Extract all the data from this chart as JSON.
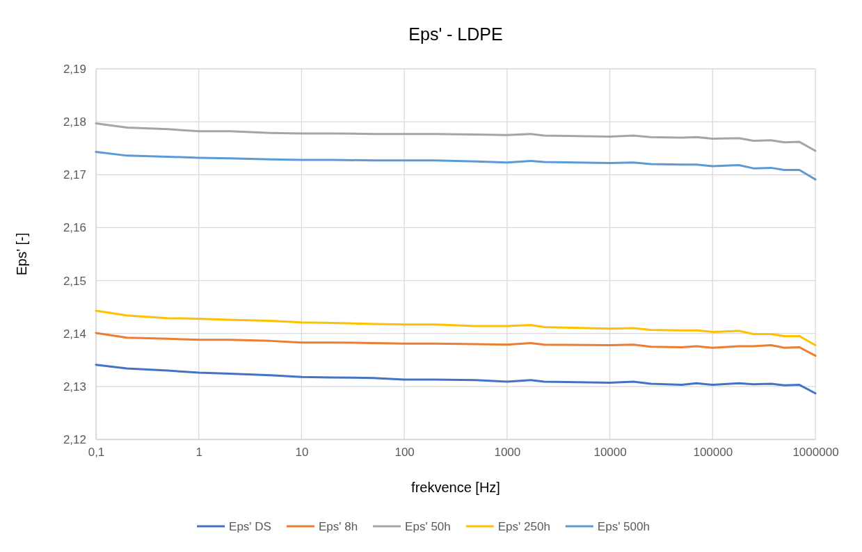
{
  "chart_data": {
    "type": "line",
    "title": "Eps' - LDPE",
    "xlabel": "frekvence [Hz]",
    "ylabel": "Eps' [-]",
    "x": [
      0.1,
      0.2,
      0.5,
      1,
      2,
      5,
      10,
      20,
      50,
      100,
      200,
      500,
      1000,
      1700,
      2300,
      10000,
      17000,
      25000,
      50000,
      70000,
      100000,
      180000,
      250000,
      370000,
      500000,
      700000,
      1000000
    ],
    "log": "x",
    "grid": true,
    "legend": "bottom",
    "marker": "none",
    "line_style": "solid",
    "xlim": [
      0.1,
      1000000
    ],
    "xticks": [
      {
        "value": 0.1,
        "label": "0,1"
      },
      1,
      10,
      100,
      1000,
      10000,
      100000,
      1000000
    ],
    "ylim": [
      2.12,
      2.19
    ],
    "yticks": [
      {
        "value": 2.12,
        "label": "2,12"
      },
      {
        "value": 2.13,
        "label": "2,13"
      },
      {
        "value": 2.14,
        "label": "2,14"
      },
      {
        "value": 2.15,
        "label": "2,15"
      },
      {
        "value": 2.16,
        "label": "2,16"
      },
      {
        "value": 2.17,
        "label": "2,17"
      },
      {
        "value": 2.18,
        "label": "2,18"
      },
      {
        "value": 2.19,
        "label": "2,19"
      }
    ],
    "series": [
      {
        "name": "Eps' DS",
        "color": "#4472c4",
        "values": [
          2.1341,
          2.1334,
          2.133,
          2.1326,
          2.1324,
          2.1321,
          2.1318,
          2.1317,
          2.1316,
          2.1313,
          2.1313,
          2.1312,
          2.1309,
          2.1312,
          2.1309,
          2.1307,
          2.1309,
          2.1305,
          2.1303,
          2.1306,
          2.1303,
          2.1306,
          2.1304,
          2.1305,
          2.1302,
          2.1303,
          2.1287
        ]
      },
      {
        "name": "Eps' 8h",
        "color": "#ed7d31",
        "values": [
          2.1401,
          2.1392,
          2.139,
          2.1388,
          2.1388,
          2.1386,
          2.1383,
          2.1383,
          2.1382,
          2.1381,
          2.1381,
          2.138,
          2.1379,
          2.1382,
          2.1379,
          2.1378,
          2.1379,
          2.1375,
          2.1374,
          2.1376,
          2.1373,
          2.1376,
          2.1376,
          2.1378,
          2.1373,
          2.1374,
          2.1358
        ]
      },
      {
        "name": "Eps' 50h",
        "color": "#a5a5a5",
        "values": [
          2.1797,
          2.1789,
          2.1786,
          2.1782,
          2.1782,
          2.1779,
          2.1778,
          2.1778,
          2.1777,
          2.1777,
          2.1777,
          2.1776,
          2.1775,
          2.1777,
          2.1774,
          2.1772,
          2.1774,
          2.1771,
          2.177,
          2.1771,
          2.1768,
          2.1769,
          2.1764,
          2.1765,
          2.1761,
          2.1762,
          2.1745
        ]
      },
      {
        "name": "Eps' 250h",
        "color": "#ffc000",
        "values": [
          2.1443,
          2.1434,
          2.1429,
          2.1428,
          2.1426,
          2.1424,
          2.1421,
          2.142,
          2.1418,
          2.1417,
          2.1417,
          2.1414,
          2.1414,
          2.1416,
          2.1412,
          2.1409,
          2.141,
          2.1407,
          2.1406,
          2.1406,
          2.1403,
          2.1405,
          2.1399,
          2.1399,
          2.1395,
          2.1395,
          2.1378
        ]
      },
      {
        "name": "Eps' 500h",
        "color": "#5b9bd5",
        "values": [
          2.1743,
          2.1736,
          2.1734,
          2.1732,
          2.1731,
          2.1729,
          2.1728,
          2.1728,
          2.1727,
          2.1727,
          2.1727,
          2.1725,
          2.1723,
          2.1726,
          2.1724,
          2.1722,
          2.1723,
          2.172,
          2.1719,
          2.1719,
          2.1716,
          2.1718,
          2.1712,
          2.1713,
          2.1709,
          2.1709,
          2.1691
        ]
      }
    ]
  }
}
